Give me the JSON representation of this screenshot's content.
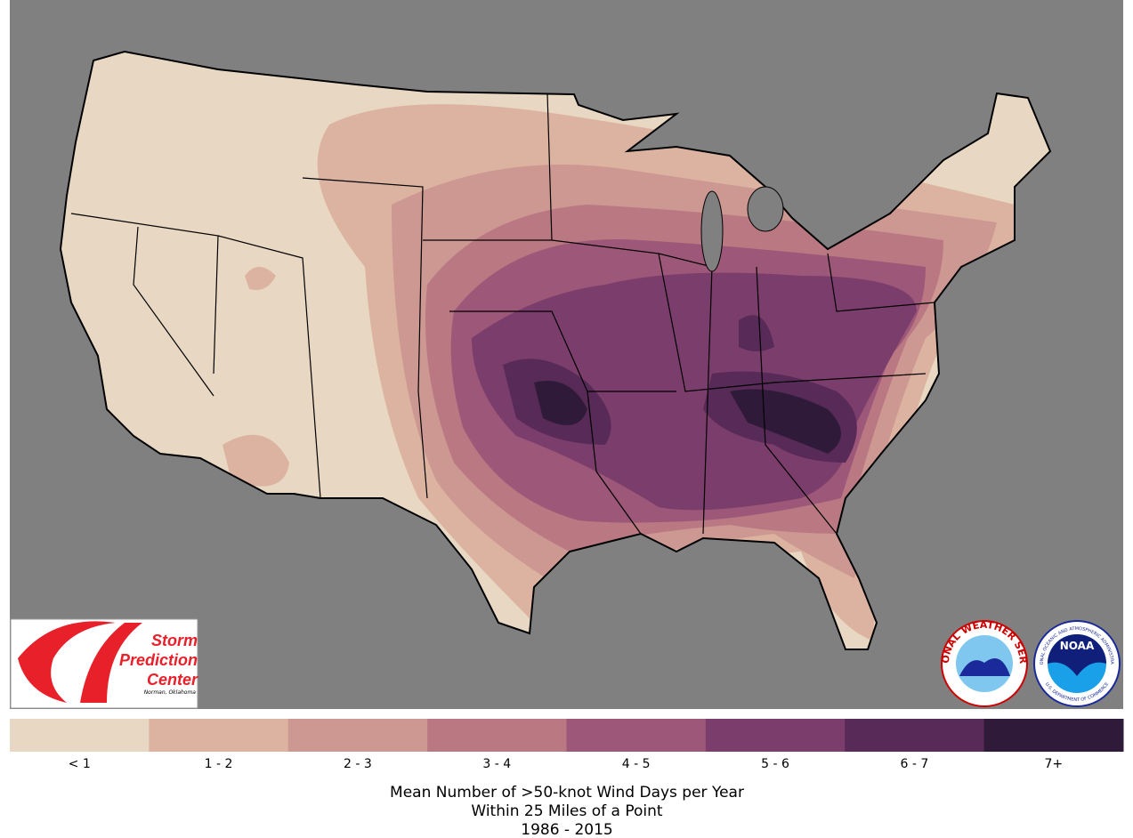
{
  "legend": {
    "classes": [
      {
        "label": "< 1",
        "color": "#e8d8c3"
      },
      {
        "label": "1 - 2",
        "color": "#dcb3a1"
      },
      {
        "label": "2 - 3",
        "color": "#cd9792"
      },
      {
        "label": "3 - 4",
        "color": "#b97882"
      },
      {
        "label": "4 - 5",
        "color": "#9d5778"
      },
      {
        "label": "5 - 6",
        "color": "#7b3d6b"
      },
      {
        "label": "6 - 7",
        "color": "#572a57"
      },
      {
        "label": "7+",
        "color": "#2f1b39"
      }
    ]
  },
  "caption": [
    "Mean Number of >50-knot Wind Days per Year",
    "Within 25 Miles of a Point",
    "1986 - 2015"
  ],
  "logos": {
    "spc": [
      "Storm",
      "Prediction",
      "Center",
      "Norman, Oklahoma"
    ],
    "nws": "NATIONAL WEATHER SERVICE",
    "noaa": {
      "name": "NOAA",
      "top": "NATIONAL OCEANIC AND ATMOSPHERIC ADMINISTRATION",
      "bottom": "U.S. DEPARTMENT OF COMMERCE"
    }
  }
}
